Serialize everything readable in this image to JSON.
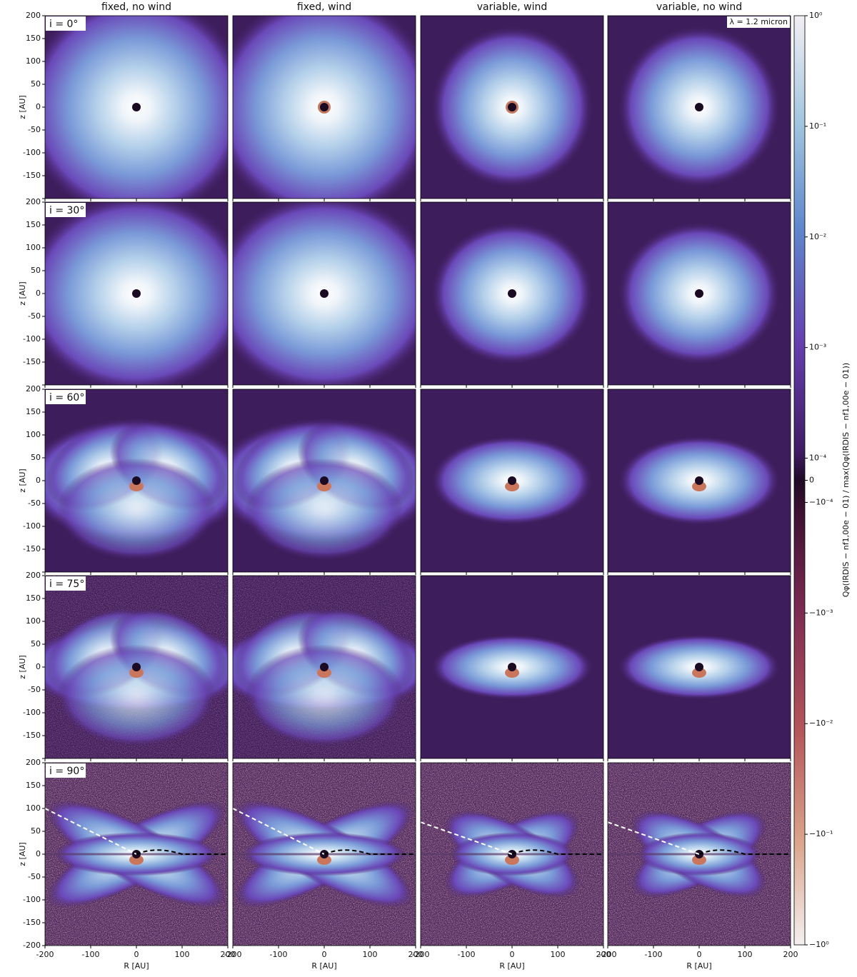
{
  "chart_data": {
    "type": "image-grid",
    "columns": [
      "fixed, no wind",
      "fixed, wind",
      "variable, wind",
      "variable, no wind"
    ],
    "rows": [
      "i = 0°",
      "i = 30°",
      "i = 60°",
      "i = 75°",
      "i = 90°"
    ],
    "xlabel": "R [AU]",
    "ylabel": "z [AU]",
    "xlim": [
      -200,
      200
    ],
    "ylim": [
      -200,
      200
    ],
    "xticks": [
      -200,
      -100,
      0,
      100,
      200
    ],
    "yticks": [
      -200,
      -150,
      -100,
      -50,
      0,
      50,
      100,
      150,
      200
    ],
    "annotation": "λ = 1.2 micron",
    "colorbar": {
      "label": "Qφ(IRDIS − nf1,00e − 01) / max(Qφ(IRDIS − nf1,00e − 01))",
      "scale": "symlog",
      "lim": [
        -1,
        1
      ],
      "ticks": [
        {
          "value": 1,
          "label": "10⁰"
        },
        {
          "value": 0.1,
          "label": "10⁻¹"
        },
        {
          "value": 0.01,
          "label": "10⁻²"
        },
        {
          "value": 0.001,
          "label": "10⁻³"
        },
        {
          "value": 0.0001,
          "label": "10⁻⁴"
        },
        0,
        {
          "value": -0.0001,
          "label": "−10⁻⁴"
        },
        {
          "value": -0.001,
          "label": "−10⁻³"
        },
        {
          "value": -0.01,
          "label": "−10⁻²"
        },
        {
          "value": -0.1,
          "label": "−10⁻¹"
        },
        {
          "value": -1,
          "label": "−10⁰"
        }
      ]
    }
  }
}
